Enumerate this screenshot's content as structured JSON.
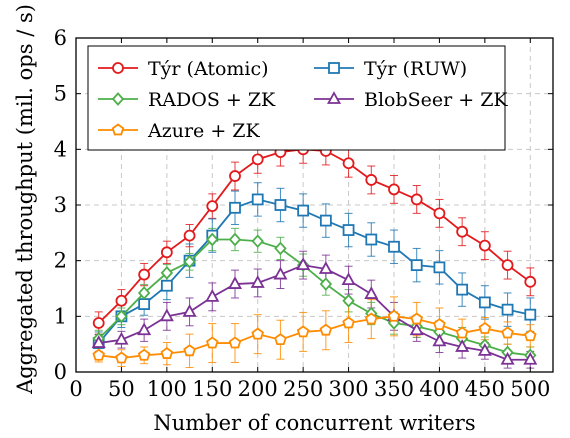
{
  "chart_data": {
    "type": "line",
    "xlabel": "Number of concurrent writers",
    "ylabel": "Aggregated throughput (mil. ops / s)",
    "xlim": [
      0,
      525
    ],
    "ylim": [
      0,
      6
    ],
    "xticks": [
      0,
      50,
      100,
      150,
      200,
      250,
      300,
      350,
      400,
      450,
      500
    ],
    "yticks": [
      0,
      1,
      2,
      3,
      4,
      5,
      6
    ],
    "grid": true,
    "legend_position": "top-left",
    "x": [
      25,
      50,
      75,
      100,
      125,
      150,
      175,
      200,
      225,
      250,
      275,
      300,
      325,
      350,
      375,
      400,
      425,
      450,
      475,
      500
    ],
    "series": [
      {
        "name": "Týr (Atomic)",
        "color": "#e31a1c",
        "marker": "circle",
        "values": [
          0.88,
          1.28,
          1.75,
          2.15,
          2.45,
          2.98,
          3.52,
          3.82,
          3.95,
          4.0,
          3.97,
          3.75,
          3.45,
          3.28,
          3.1,
          2.85,
          2.52,
          2.27,
          1.92,
          1.62
        ],
        "errors": [
          0.2,
          0.2,
          0.2,
          0.2,
          0.2,
          0.22,
          0.25,
          0.25,
          0.25,
          0.25,
          0.25,
          0.25,
          0.25,
          0.25,
          0.25,
          0.25,
          0.25,
          0.25,
          0.25,
          0.25
        ]
      },
      {
        "name": "Týr (RUW)",
        "color": "#1f78b4",
        "marker": "square",
        "values": [
          0.52,
          1.0,
          1.22,
          1.55,
          2.0,
          2.45,
          2.95,
          3.1,
          3.0,
          2.9,
          2.72,
          2.55,
          2.38,
          2.25,
          1.92,
          1.88,
          1.48,
          1.25,
          1.12,
          1.03
        ],
        "errors": [
          0.2,
          0.2,
          0.2,
          0.25,
          0.3,
          0.3,
          0.3,
          0.3,
          0.3,
          0.3,
          0.3,
          0.3,
          0.3,
          0.3,
          0.3,
          0.3,
          0.3,
          0.3,
          0.3,
          0.3
        ]
      },
      {
        "name": "RADOS + ZK",
        "color": "#4daf4a",
        "marker": "diamond",
        "values": [
          0.6,
          1.0,
          1.42,
          1.78,
          1.98,
          2.38,
          2.38,
          2.35,
          2.22,
          1.92,
          1.58,
          1.28,
          1.05,
          0.88,
          0.82,
          0.72,
          0.6,
          0.48,
          0.35,
          0.3
        ],
        "errors": [
          0.15,
          0.15,
          0.15,
          0.15,
          0.15,
          0.2,
          0.2,
          0.2,
          0.2,
          0.2,
          0.2,
          0.2,
          0.2,
          0.2,
          0.2,
          0.2,
          0.2,
          0.15,
          0.15,
          0.15
        ]
      },
      {
        "name": "BlobSeer + ZK",
        "color": "#7b3294",
        "marker": "triangle",
        "values": [
          0.52,
          0.58,
          0.75,
          1.0,
          1.08,
          1.35,
          1.58,
          1.6,
          1.75,
          1.92,
          1.85,
          1.65,
          1.4,
          1.0,
          0.75,
          0.55,
          0.45,
          0.38,
          0.22,
          0.22
        ],
        "errors": [
          0.15,
          0.15,
          0.2,
          0.25,
          0.25,
          0.25,
          0.25,
          0.25,
          0.25,
          0.25,
          0.25,
          0.25,
          0.25,
          0.25,
          0.2,
          0.2,
          0.2,
          0.15,
          0.15,
          0.15
        ]
      },
      {
        "name": "Azure + ZK",
        "color": "#ff8c00",
        "marker": "pentagon",
        "values": [
          0.3,
          0.25,
          0.3,
          0.33,
          0.38,
          0.52,
          0.52,
          0.68,
          0.58,
          0.72,
          0.75,
          0.88,
          0.95,
          1.0,
          0.95,
          0.85,
          0.7,
          0.78,
          0.7,
          0.65
        ],
        "errors": [
          0.12,
          0.15,
          0.15,
          0.2,
          0.3,
          0.35,
          0.35,
          0.35,
          0.35,
          0.35,
          0.35,
          0.35,
          0.35,
          0.35,
          0.3,
          0.3,
          0.25,
          0.2,
          0.2,
          0.2
        ]
      }
    ]
  }
}
